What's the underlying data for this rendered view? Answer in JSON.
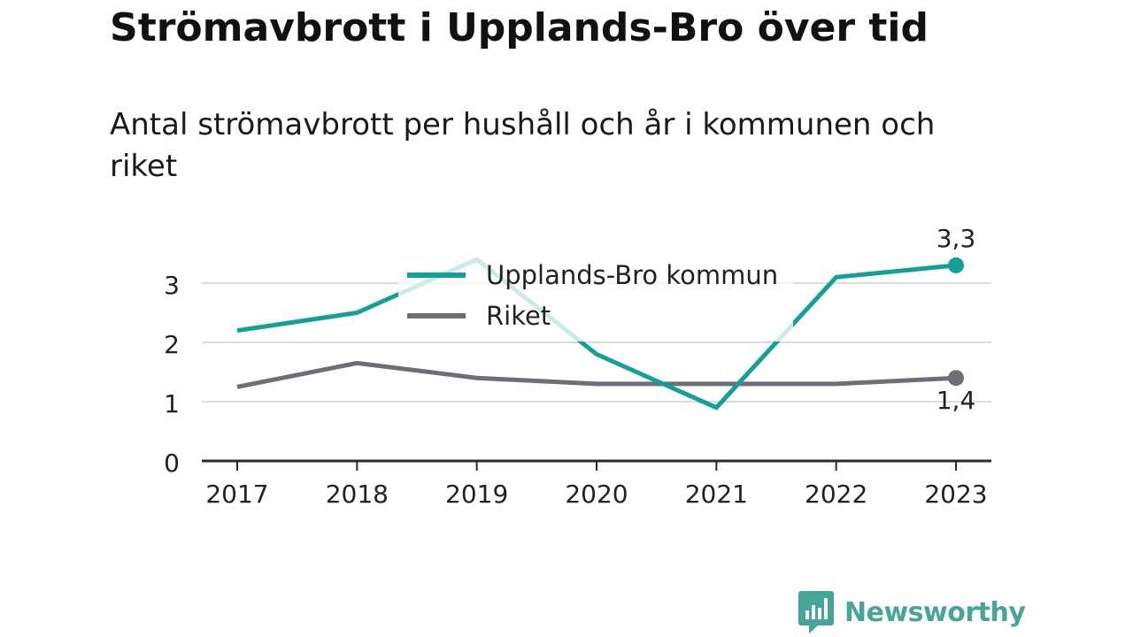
{
  "title": "Strömavbrott i Upplands-Bro över tid",
  "subtitle": "Antal strömavbrott per hushåll och år i kommunen och riket",
  "brand": {
    "name": "Newsworthy",
    "icon": "newsworthy-logo-icon",
    "color": "#48a59a"
  },
  "chart_data": {
    "type": "line",
    "x": [
      "2017",
      "2018",
      "2019",
      "2020",
      "2021",
      "2022",
      "2023"
    ],
    "yticks": [
      "0",
      "1",
      "2",
      "3"
    ],
    "ylim": [
      0,
      3.5
    ],
    "grid": true,
    "legend_position": "top-center",
    "series": [
      {
        "name": "Upplands-Bro kommun",
        "color": "#14a195",
        "values": [
          2.2,
          2.5,
          3.4,
          1.8,
          0.9,
          3.1,
          3.3
        ],
        "end_label": "3,3"
      },
      {
        "name": "Riket",
        "color": "#6f6e77",
        "values": [
          1.25,
          1.65,
          1.4,
          1.3,
          1.3,
          1.3,
          1.4
        ],
        "end_label": "1,4"
      }
    ]
  }
}
